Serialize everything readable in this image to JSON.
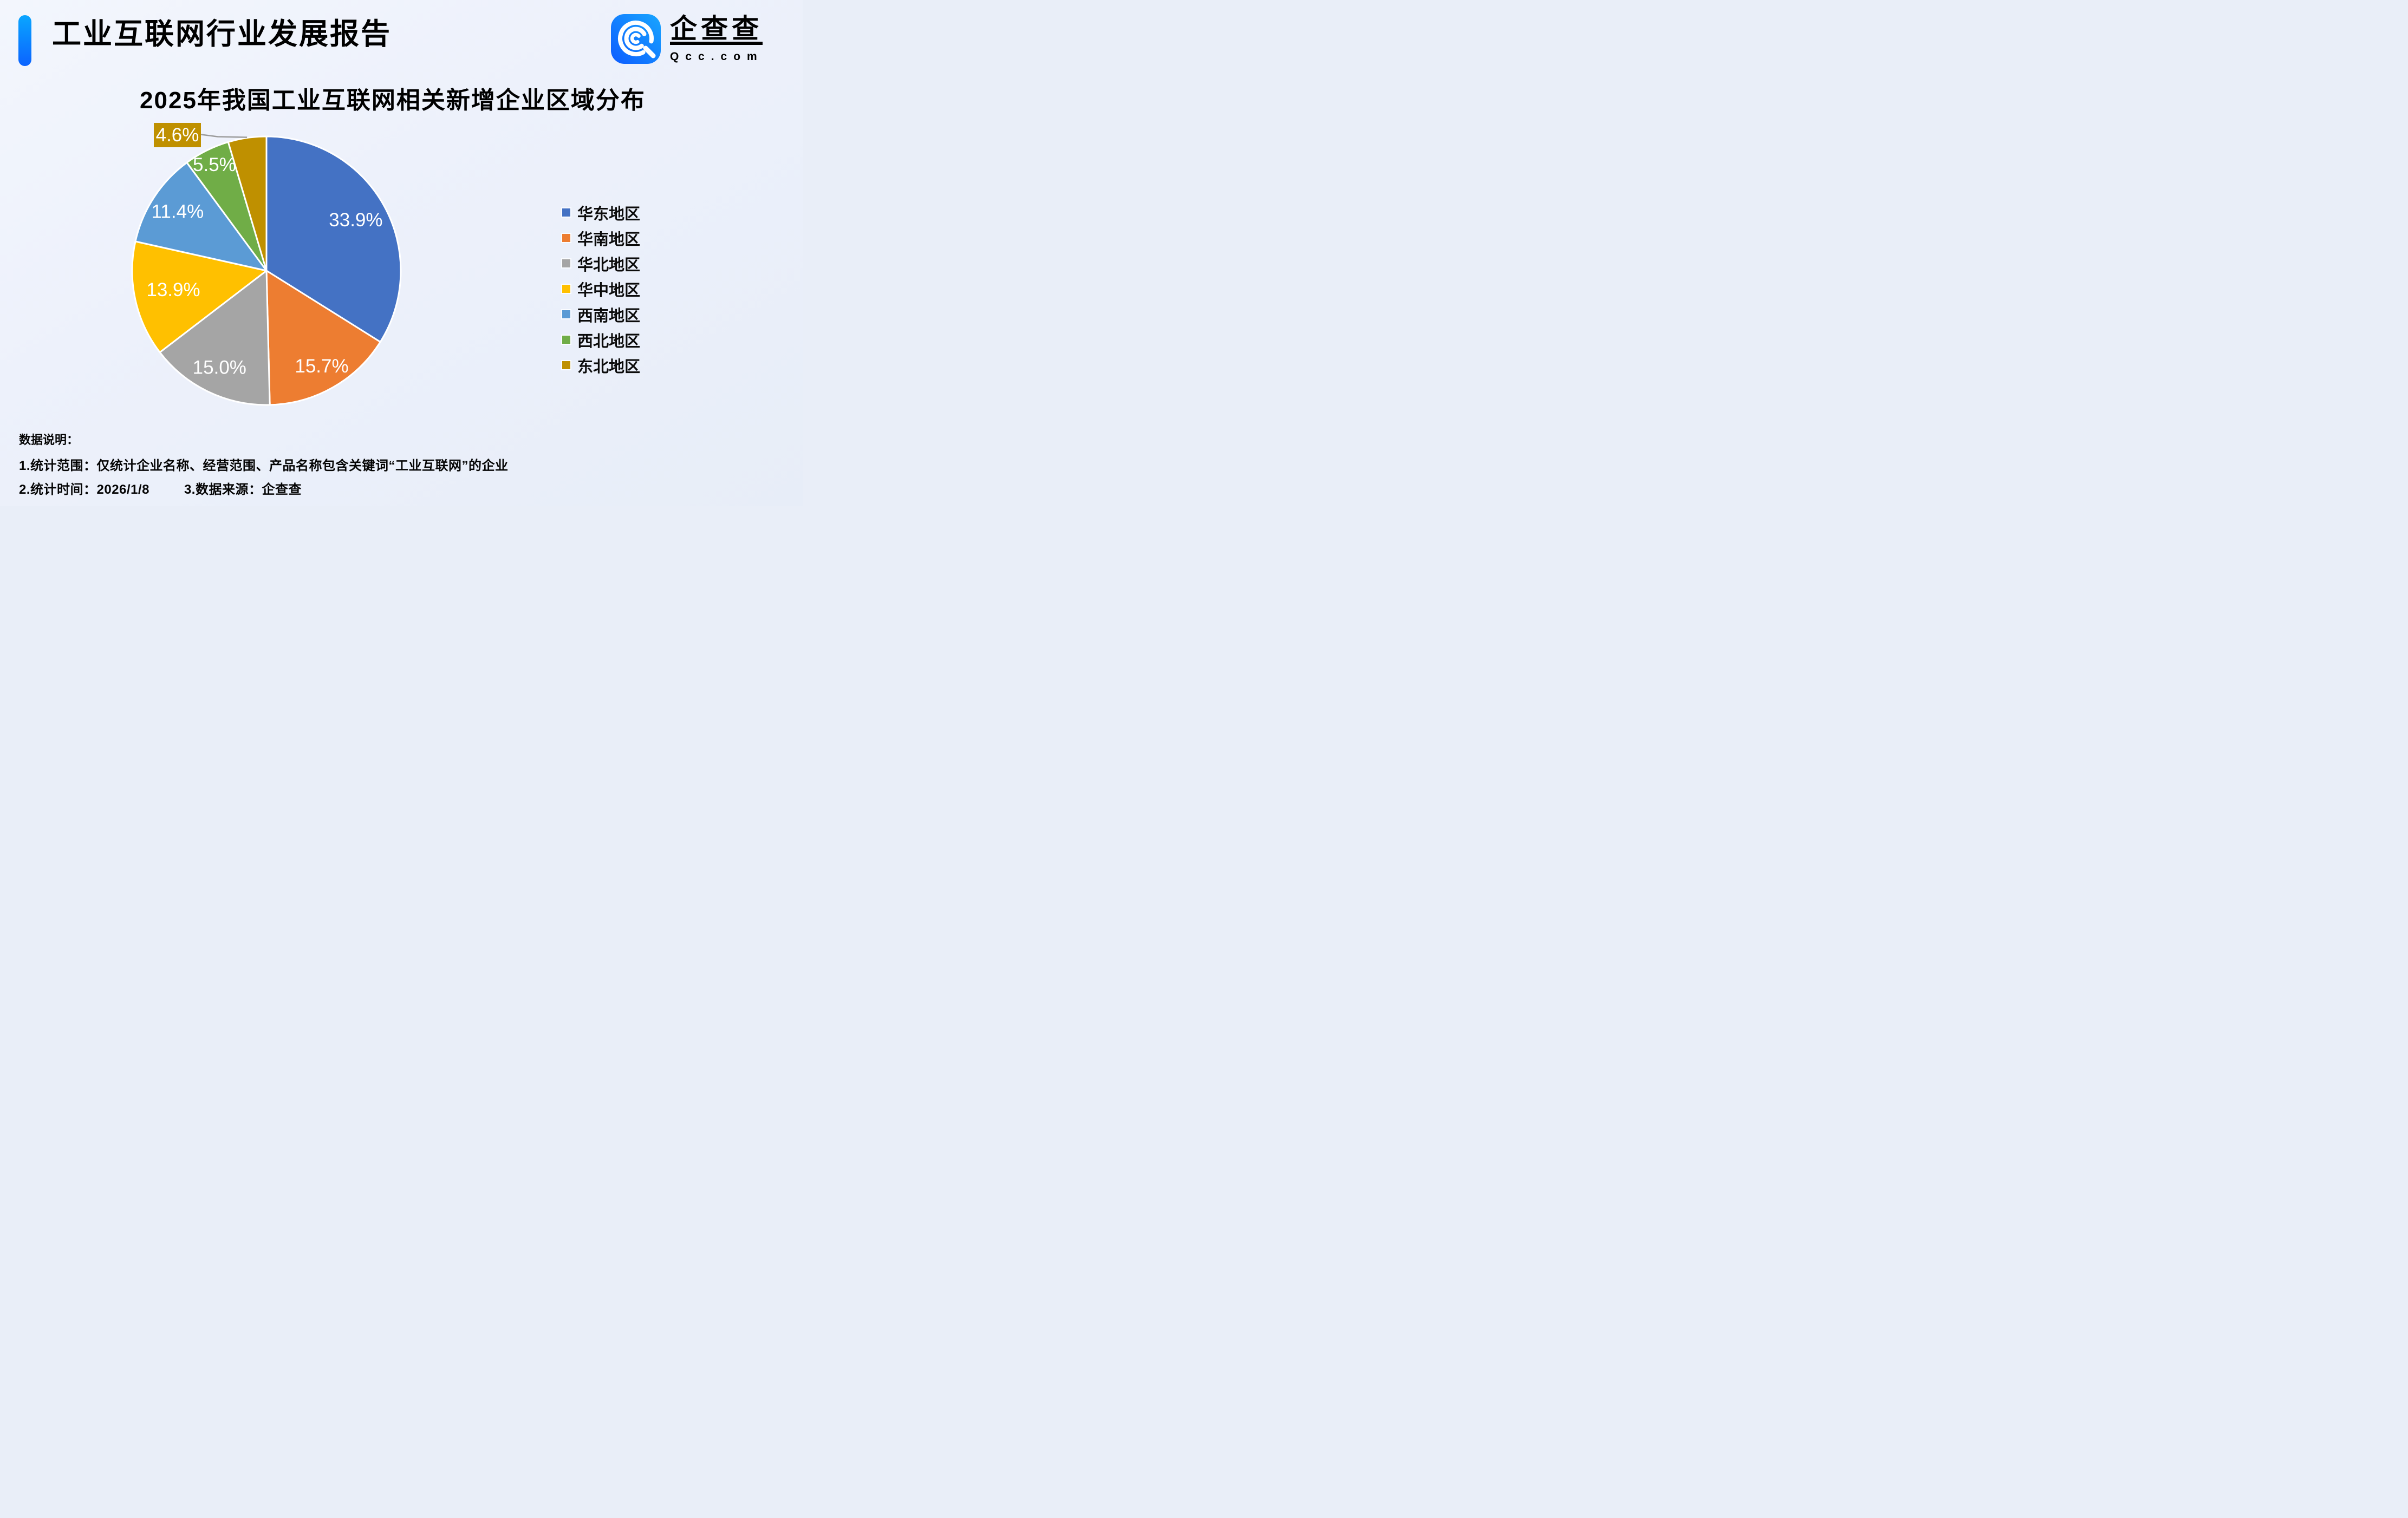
{
  "header": {
    "title": "工业互联网行业发展报告"
  },
  "logo": {
    "name": "企查查",
    "domain": "Qcc.com"
  },
  "chart_data": {
    "type": "pie",
    "title": "2025年我国工业互联网相关新增企业区域分布",
    "legend_position": "right",
    "direction": "clockwise",
    "start_angle_deg": 0,
    "value_unit": "%",
    "categories": [
      "华东地区",
      "华南地区",
      "华北地区",
      "华中地区",
      "西南地区",
      "西北地区",
      "东北地区"
    ],
    "values": [
      33.9,
      15.7,
      15.0,
      13.9,
      11.4,
      5.5,
      4.6
    ],
    "slices": [
      {
        "label": "华东地区",
        "value": 33.9,
        "display": "33.9%",
        "color": "#4472C4",
        "label_r": 0.76
      },
      {
        "label": "华南地区",
        "value": 15.7,
        "display": "15.7%",
        "color": "#ED7D31",
        "label_r": 0.83
      },
      {
        "label": "华北地区",
        "value": 15.0,
        "display": "15.0%",
        "color": "#A5A5A5",
        "label_r": 0.81
      },
      {
        "label": "华中地区",
        "value": 13.9,
        "display": "13.9%",
        "color": "#FFC000",
        "label_r": 0.71
      },
      {
        "label": "西南地区",
        "value": 11.4,
        "display": "11.4%",
        "color": "#5B9BD5",
        "label_r": 0.79
      },
      {
        "label": "西北地区",
        "value": 5.5,
        "display": "5.5%",
        "color": "#70AD47",
        "label_r": 0.87
      },
      {
        "label": "东北地区",
        "value": 4.6,
        "display": "4.6%",
        "color": "#BF9000",
        "callout": true
      }
    ]
  },
  "notes": {
    "heading": "数据说明：",
    "scope": "1.统计范围：仅统计企业名称、经营范围、产品名称包含关键词“工业互联网”的企业",
    "time": "2.统计时间：2026/1/8",
    "source": "3.数据来源：企查查"
  },
  "colors": {
    "accent_bar_top": "#0AA6FF",
    "accent_bar_bottom": "#0B63FF",
    "logo_blue_light": "#18A6FF",
    "logo_blue_dark": "#0D5CFF",
    "background": "#EDF1FB",
    "pie_label_text": "#FFFFFF",
    "leader_line": "#9B9B9B",
    "text": "#000000"
  }
}
